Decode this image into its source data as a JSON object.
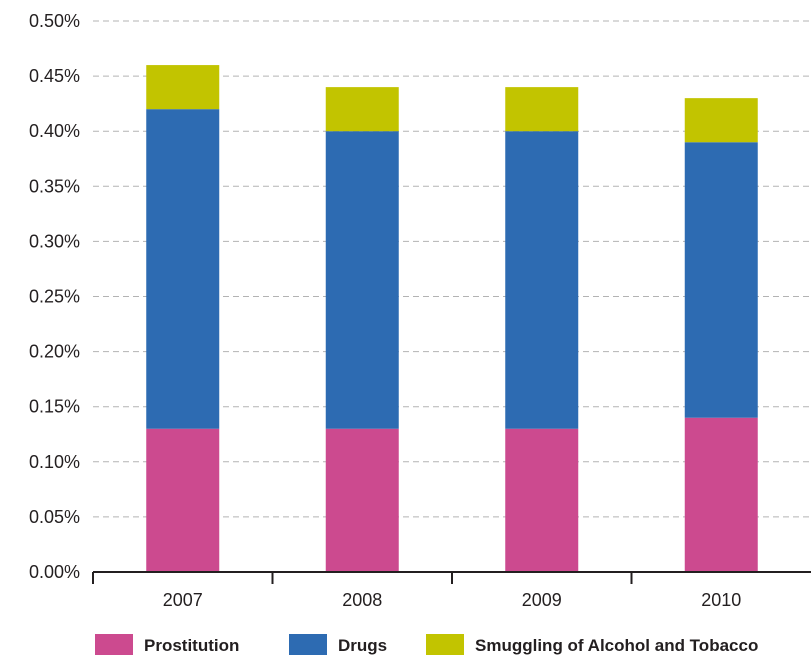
{
  "chart_data": {
    "type": "bar",
    "stacked": true,
    "categories": [
      "2007",
      "2008",
      "2009",
      "2010"
    ],
    "series": [
      {
        "name": "Prostitution",
        "values": [
          0.13,
          0.13,
          0.13,
          0.14
        ],
        "color": "#cc4a8f"
      },
      {
        "name": "Drugs",
        "values": [
          0.29,
          0.27,
          0.27,
          0.25
        ],
        "color": "#2d6bb2"
      },
      {
        "name": "Smuggling of Alcohol and Tobacco",
        "values": [
          0.04,
          0.04,
          0.04,
          0.04
        ],
        "color": "#c2c400"
      }
    ],
    "yticks": [
      "0.00%",
      "0.05%",
      "0.10%",
      "0.15%",
      "0.20%",
      "0.25%",
      "0.30%",
      "0.35%",
      "0.40%",
      "0.45%",
      "0.50%"
    ],
    "ylim": [
      0,
      0.5
    ],
    "y_unit": "%",
    "grid": true,
    "grid_style": "dashed",
    "legend_position": "bottom",
    "title": "",
    "xlabel": "",
    "ylabel": ""
  }
}
